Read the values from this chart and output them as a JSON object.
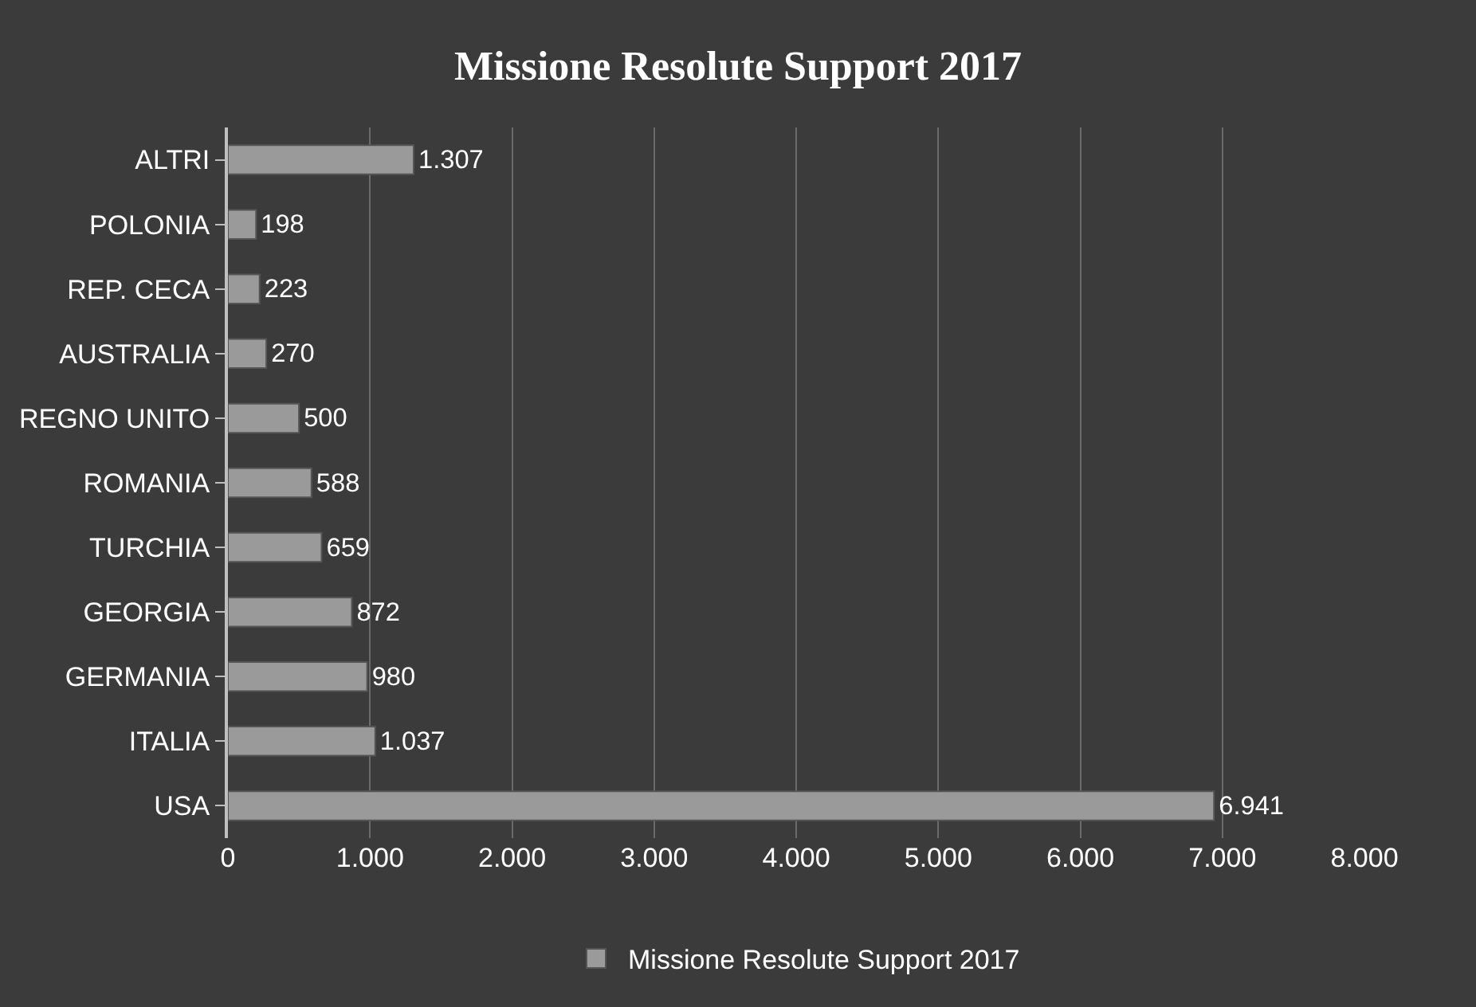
{
  "chart_data": {
    "type": "bar",
    "orientation": "horizontal",
    "title": "Missione Resolute Support 2017",
    "categories": [
      "ALTRI",
      "POLONIA",
      "REP. CECA",
      "AUSTRALIA",
      "REGNO UNITO",
      "ROMANIA",
      "TURCHIA",
      "GEORGIA",
      "GERMANIA",
      "ITALIA",
      "USA"
    ],
    "series": [
      {
        "name": "Missione Resolute Support 2017",
        "color": "#9a9a9a",
        "values": [
          1307,
          198,
          223,
          270,
          500,
          588,
          659,
          872,
          980,
          1037,
          6941
        ],
        "value_labels": [
          "1.307",
          "198",
          "223",
          "270",
          "500",
          "588",
          "659",
          "872",
          "980",
          "1.037",
          "6.941"
        ]
      }
    ],
    "xlim": [
      0,
      8000
    ],
    "xticks": [
      0,
      {
        "value": 1000,
        "label": "1.000"
      },
      {
        "value": 2000,
        "label": "2.000"
      },
      {
        "value": 3000,
        "label": "3.000"
      },
      {
        "value": 4000,
        "label": "4.000"
      },
      {
        "value": 5000,
        "label": "5.000"
      },
      {
        "value": 6000,
        "label": "6.000"
      },
      {
        "value": 7000,
        "label": "7.000"
      },
      {
        "value": 8000,
        "label": "8.000"
      }
    ],
    "grid": "x",
    "legend": "bottom"
  }
}
